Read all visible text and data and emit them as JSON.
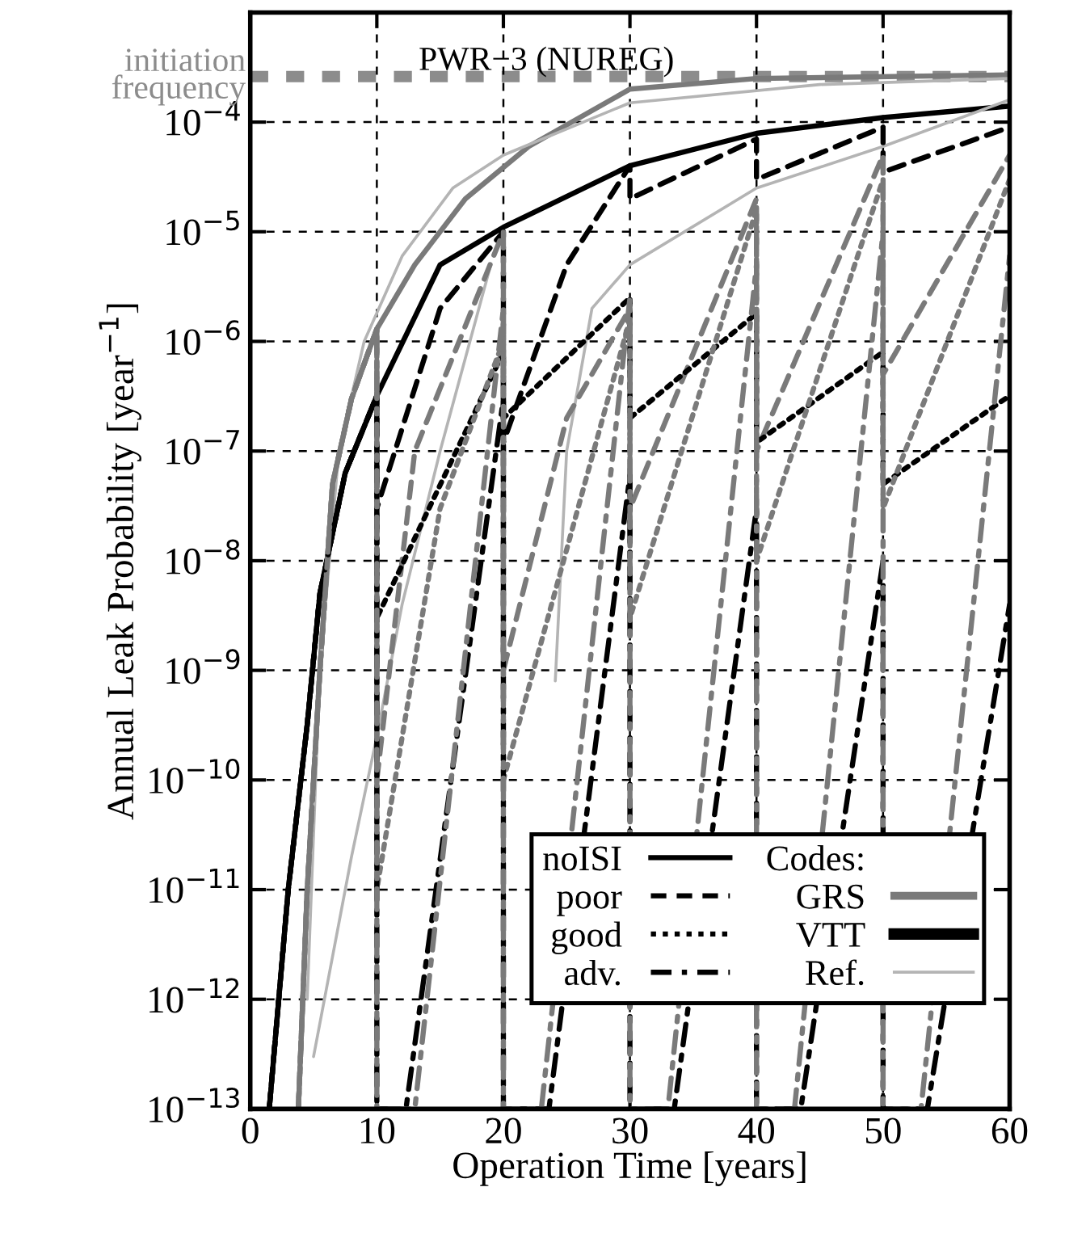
{
  "chart_data": {
    "type": "line",
    "title": "PWR−3 (NUREG)",
    "xlabel": "Operation Time [years]",
    "ylabel": "Annual Leak Probability [year$^{−1}$]",
    "legend_title": "Codes:",
    "annotations": [
      "VTT"
    ],
    "xlim": [
      0,
      60
    ],
    "xticks": [
      0,
      10,
      20,
      30,
      40,
      50,
      60
    ],
    "ylim": [
      1e-13,
      0.001
    ],
    "log": "y",
    "grid": true,
    "legend": "bottom right",
    "yticks": [
      {
        "value": 1e-13,
        "label": "10$^{−13}$"
      },
      {
        "value": 1e-12,
        "label": "10$^{−12}$"
      },
      {
        "value": 1e-11,
        "label": "10$^{−11}$"
      },
      {
        "value": 1e-10,
        "label": "10$^{−10}$"
      },
      {
        "value": 1e-09,
        "label": "10$^{−9}$"
      },
      {
        "value": 1e-08,
        "label": "10$^{−8}$"
      },
      {
        "value": 1e-07,
        "label": "10$^{−7}$"
      },
      {
        "value": 1e-06,
        "label": "10$^{−6}$"
      },
      {
        "value": 1e-05,
        "label": "10$^{−5}$"
      },
      {
        "value": 0.0001,
        "label": "10$^{−4}$"
      }
    ],
    "ref_lines": [
      {
        "axis": "y",
        "value": 0.00026,
        "label": "initiation\nfrequency",
        "color": "#8c8c8c",
        "line_style": "dashed"
      }
    ],
    "series": [
      {
        "name": "noISI",
        "color": "#000000",
        "line_style": "solid",
        "x": [
          1.5,
          3,
          4.5,
          5.5,
          7.5,
          10,
          15,
          20,
          30,
          40,
          50,
          60
        ],
        "values": [
          1e-13,
          1e-11,
          3.2e-10,
          5e-09,
          6.3e-08,
          3.2e-07,
          5e-06,
          1.1e-05,
          4e-05,
          7.9e-05,
          0.00011,
          0.00014
        ]
      },
      {
        "name": "GRS",
        "color": "#7a7a7a",
        "line_style": "solid",
        "x": [
          3.8,
          4.5,
          5.5,
          6.5,
          8,
          10,
          13,
          17,
          22,
          30,
          40,
          60
        ],
        "values": [
          1e-13,
          1e-11,
          1e-09,
          5e-08,
          3e-07,
          1.3e-06,
          5e-06,
          2e-05,
          6e-05,
          0.0002,
          0.00025,
          0.00027
        ]
      },
      {
        "name": "Ref.",
        "color": "#b4b4b4",
        "line_style": "solid",
        "x": [
          4.5,
          5.5,
          7,
          9,
          12,
          16,
          20,
          30,
          45,
          60
        ],
        "values": [
          1e-12,
          1e-09,
          1e-07,
          1e-06,
          6e-06,
          2.5e-05,
          5e-05,
          0.00015,
          0.00022,
          0.00025
        ]
      },
      {
        "color": "#b4b4b4",
        "line_style": "solid",
        "x": [
          5,
          8,
          10,
          12,
          15,
          19,
          21,
          24.1,
          25,
          27,
          30,
          40,
          50,
          60
        ],
        "values": [
          3e-13,
          2e-11,
          2.5e-10,
          4e-09,
          1e-07,
          5e-06,
          null,
          8e-10,
          1e-07,
          2e-06,
          5e-06,
          2.5e-05,
          6e-05,
          0.00016
        ]
      },
      {
        "name": "poor",
        "color": "#000000",
        "line_style": "dashed",
        "x": [
          1.5,
          3,
          4.5,
          5.5,
          7.5,
          10,
          10,
          15,
          20,
          20,
          25,
          30,
          30,
          40,
          40,
          50,
          50,
          60
        ],
        "values": [
          1e-13,
          1e-11,
          3.2e-10,
          5e-09,
          6.3e-08,
          3.2e-07,
          3e-08,
          2e-06,
          1e-05,
          1.2e-07,
          5e-06,
          4e-05,
          2e-05,
          7e-05,
          3e-05,
          9e-05,
          3.5e-05,
          9e-05
        ]
      },
      {
        "color": "#7a7a7a",
        "line_style": "dashed",
        "x": [
          3.8,
          4.5,
          5.5,
          6.5,
          8,
          10,
          10,
          13,
          20,
          20,
          25,
          30,
          30,
          40,
          40,
          50,
          50,
          60
        ],
        "values": [
          1e-13,
          1e-11,
          1e-09,
          5e-08,
          3e-07,
          1.3e-06,
          1e-10,
          1e-07,
          1e-05,
          1e-09,
          2e-07,
          2e-06,
          3e-08,
          2e-05,
          1e-07,
          5e-05,
          5e-07,
          5e-05
        ]
      },
      {
        "name": "good",
        "color": "#000000",
        "line_style": "dotted",
        "x": [
          1.5,
          3,
          4.5,
          5.5,
          7.5,
          10,
          10,
          20,
          20,
          30,
          30,
          40,
          40,
          50,
          50,
          60
        ],
        "values": [
          1e-13,
          1e-11,
          3.2e-10,
          5e-09,
          6.3e-08,
          3.2e-07,
          3e-09,
          8e-07,
          2e-07,
          2.5e-06,
          2e-07,
          1.8e-06,
          1.2e-07,
          8e-07,
          5e-08,
          3.2e-07
        ]
      },
      {
        "color": "#7a7a7a",
        "line_style": "dotted",
        "x": [
          3.8,
          4.5,
          5.5,
          6.5,
          8,
          10,
          10,
          15,
          20,
          20,
          30,
          30,
          40,
          40,
          50,
          50,
          60
        ],
        "values": [
          1e-13,
          1e-11,
          1e-09,
          5e-08,
          3e-07,
          1.3e-06,
          1e-11,
          3e-08,
          1e-06,
          1e-10,
          1.6e-06,
          3e-09,
          1.6e-05,
          1e-08,
          3e-05,
          3e-08,
          3e-05
        ]
      },
      {
        "name": "adv.",
        "color": "#000000",
        "line_style": "dashdot",
        "x": [
          1.5,
          3,
          4.5,
          5.5,
          7.5,
          10,
          10,
          12.3,
          20,
          20,
          23.6,
          30,
          30,
          33.5,
          40,
          40,
          43.5,
          50,
          50,
          53.5,
          60
        ],
        "values": [
          1e-13,
          1e-11,
          3.2e-10,
          5e-09,
          6.3e-08,
          3.2e-07,
          1e-13,
          1e-13,
          3e-07,
          1e-13,
          1e-13,
          6e-08,
          1e-13,
          1e-13,
          3e-08,
          1e-13,
          1e-13,
          1e-08,
          1e-13,
          1e-13,
          4e-09
        ]
      },
      {
        "color": "#7a7a7a",
        "line_style": "dashdot",
        "x": [
          3.8,
          4.5,
          5.5,
          6.5,
          8,
          10,
          10,
          13,
          20,
          20,
          23,
          30,
          30,
          33,
          40,
          40,
          43,
          50,
          50,
          53,
          60
        ],
        "values": [
          1e-13,
          1e-11,
          1e-09,
          5e-08,
          3e-07,
          1.3e-06,
          1e-13,
          1e-13,
          2e-06,
          1e-13,
          1e-13,
          2.5e-06,
          1e-13,
          1e-13,
          5e-06,
          1e-13,
          1e-13,
          1e-05,
          1e-13,
          1e-13,
          6e-06
        ]
      }
    ]
  }
}
